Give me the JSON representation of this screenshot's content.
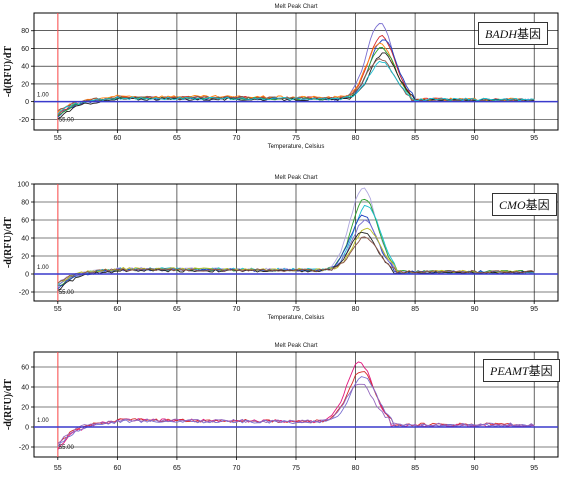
{
  "chart_data": [
    {
      "type": "line",
      "title": "Melt Peak Chart",
      "gene": "BADH",
      "gene_suffix": "基因",
      "xlabel": "Temperature, Celsius",
      "ylabel": "-d(RFU)/dT",
      "xlim": [
        53,
        97
      ],
      "ylim": [
        -32,
        100
      ],
      "xticks": [
        55,
        60,
        65,
        70,
        75,
        80,
        85,
        90,
        95
      ],
      "yticks": [
        -20,
        0,
        20,
        40,
        60,
        80
      ],
      "threshold_label": "1.00",
      "start_marker_label": "55.00",
      "threshold_y": 0,
      "start_line_x": 55,
      "grid": true,
      "peak_x": 82.2,
      "series": [
        {
          "color": "#7a6fd0",
          "peak": 90,
          "min": -16,
          "base": 4
        },
        {
          "color": "#d62728",
          "peak": 75,
          "min": -14,
          "base": 5
        },
        {
          "color": "#1f3fbf",
          "peak": 72,
          "min": -18,
          "base": 4
        },
        {
          "color": "#ff7f0e",
          "peak": 68,
          "min": -12,
          "base": 6
        },
        {
          "color": "#2ca02c",
          "peak": 62,
          "min": -15,
          "base": 4
        },
        {
          "color": "#222222",
          "peak": 55,
          "min": -20,
          "base": 3
        },
        {
          "color": "#8c564b",
          "peak": 50,
          "min": -10,
          "base": 5
        },
        {
          "color": "#17becf",
          "peak": 46,
          "min": -13,
          "base": 4
        }
      ]
    },
    {
      "type": "line",
      "title": "Melt Peak Chart",
      "gene": "CMO",
      "gene_suffix": "基因",
      "xlabel": "Temperature, Celsius",
      "ylabel": "-d(RFU)/dT",
      "xlim": [
        53,
        97
      ],
      "ylim": [
        -30,
        100
      ],
      "xticks": [
        55,
        60,
        65,
        70,
        75,
        80,
        85,
        90,
        95
      ],
      "yticks": [
        -20,
        0,
        20,
        40,
        60,
        80,
        100
      ],
      "threshold_label": "1.00",
      "start_marker_label": "55.00",
      "threshold_y": 0,
      "start_line_x": 55,
      "grid": true,
      "peak_x": 80.8,
      "series": [
        {
          "color": "#b0a8e0",
          "peak": 97,
          "min": -10,
          "base": 6
        },
        {
          "color": "#2ca02c",
          "peak": 85,
          "min": -14,
          "base": 5
        },
        {
          "color": "#17becf",
          "peak": 78,
          "min": -12,
          "base": 6
        },
        {
          "color": "#1f3fbf",
          "peak": 66,
          "min": -16,
          "base": 5
        },
        {
          "color": "#7a6fd0",
          "peak": 60,
          "min": -13,
          "base": 5
        },
        {
          "color": "#bcbd22",
          "peak": 52,
          "min": -11,
          "base": 6
        },
        {
          "color": "#222222",
          "peak": 48,
          "min": -18,
          "base": 4
        },
        {
          "color": "#8c564b",
          "peak": 42,
          "min": -9,
          "base": 5
        }
      ]
    },
    {
      "type": "line",
      "title": "Melt Peak Chart",
      "gene": "PEAMT",
      "gene_suffix": "基因",
      "xlabel": "",
      "ylabel": "-d(RFU)/dT",
      "xlim": [
        53,
        97
      ],
      "ylim": [
        -30,
        75
      ],
      "xticks": [
        55,
        60,
        65,
        70,
        75,
        80,
        85,
        90,
        95
      ],
      "yticks": [
        -20,
        0,
        20,
        40,
        60
      ],
      "threshold_label": "1.00",
      "start_marker_label": "55.00",
      "threshold_y": 0,
      "start_line_x": 55,
      "grid": true,
      "peak_x": 80.5,
      "series": [
        {
          "color": "#e0197d",
          "peak": 66,
          "min": -22,
          "base": 7
        },
        {
          "color": "#d62728",
          "peak": 58,
          "min": -18,
          "base": 7
        },
        {
          "color": "#7a6fd0",
          "peak": 52,
          "min": -20,
          "base": 6
        },
        {
          "color": "#9467bd",
          "peak": 46,
          "min": -16,
          "base": 7
        }
      ]
    }
  ]
}
